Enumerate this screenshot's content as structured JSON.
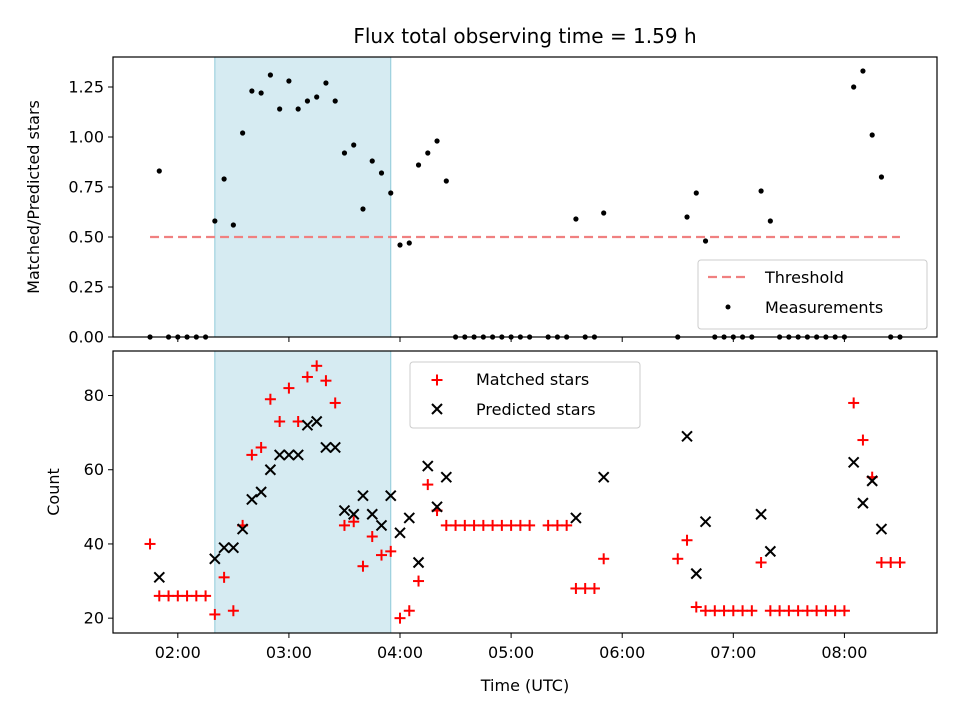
{
  "chart_data": [
    {
      "type": "scatter",
      "title": "Flux total observing time = 1.59 h",
      "xlabel": "",
      "ylabel": "Matched/Predicted stars",
      "xlim": [
        "01:25",
        "08:50"
      ],
      "ylim": [
        0,
        1.4
      ],
      "yticks": [
        "0.00",
        "0.25",
        "0.50",
        "0.75",
        "1.00",
        "1.25"
      ],
      "shaded_span": [
        "02:20",
        "03:55"
      ],
      "shade_color": "#add8e6",
      "grid": false,
      "legend_position": "lower-right",
      "threshold": {
        "name": "Threshold",
        "y": 0.5,
        "x_start": "01:45",
        "x_end": "08:30",
        "color": "#f08080"
      },
      "series": [
        {
          "name": "Measurements",
          "color": "#000000",
          "points": [
            [
              "01:45",
              0
            ],
            [
              "01:50",
              0.83
            ],
            [
              "01:55",
              0
            ],
            [
              "02:00",
              0
            ],
            [
              "02:05",
              0
            ],
            [
              "02:10",
              0
            ],
            [
              "02:15",
              0
            ],
            [
              "02:20",
              0.58
            ],
            [
              "02:25",
              0.79
            ],
            [
              "02:30",
              0.56
            ],
            [
              "02:35",
              1.02
            ],
            [
              "02:40",
              1.23
            ],
            [
              "02:45",
              1.22
            ],
            [
              "02:50",
              1.31
            ],
            [
              "02:55",
              1.14
            ],
            [
              "03:00",
              1.28
            ],
            [
              "03:05",
              1.14
            ],
            [
              "03:10",
              1.18
            ],
            [
              "03:15",
              1.2
            ],
            [
              "03:20",
              1.27
            ],
            [
              "03:25",
              1.18
            ],
            [
              "03:30",
              0.92
            ],
            [
              "03:35",
              0.96
            ],
            [
              "03:40",
              0.64
            ],
            [
              "03:45",
              0.88
            ],
            [
              "03:50",
              0.82
            ],
            [
              "03:55",
              0.72
            ],
            [
              "04:00",
              0.46
            ],
            [
              "04:05",
              0.47
            ],
            [
              "04:10",
              0.86
            ],
            [
              "04:15",
              0.92
            ],
            [
              "04:20",
              0.98
            ],
            [
              "04:25",
              0.78
            ],
            [
              "04:30",
              0
            ],
            [
              "04:35",
              0
            ],
            [
              "04:40",
              0
            ],
            [
              "04:45",
              0
            ],
            [
              "04:50",
              0
            ],
            [
              "04:55",
              0
            ],
            [
              "05:00",
              0
            ],
            [
              "05:05",
              0
            ],
            [
              "05:10",
              0
            ],
            [
              "05:20",
              0
            ],
            [
              "05:25",
              0
            ],
            [
              "05:30",
              0
            ],
            [
              "05:35",
              0.59
            ],
            [
              "05:40",
              0
            ],
            [
              "05:45",
              0
            ],
            [
              "05:50",
              0.62
            ],
            [
              "06:30",
              0
            ],
            [
              "06:35",
              0.6
            ],
            [
              "06:40",
              0.72
            ],
            [
              "06:45",
              0.48
            ],
            [
              "06:50",
              0
            ],
            [
              "06:55",
              0
            ],
            [
              "07:00",
              0
            ],
            [
              "07:05",
              0
            ],
            [
              "07:10",
              0
            ],
            [
              "07:15",
              0.73
            ],
            [
              "07:20",
              0.58
            ],
            [
              "07:25",
              0
            ],
            [
              "07:30",
              0
            ],
            [
              "07:35",
              0
            ],
            [
              "07:40",
              0
            ],
            [
              "07:45",
              0
            ],
            [
              "07:50",
              0
            ],
            [
              "07:55",
              0
            ],
            [
              "08:00",
              0
            ],
            [
              "08:05",
              1.25
            ],
            [
              "08:10",
              1.33
            ],
            [
              "08:15",
              1.01
            ],
            [
              "08:20",
              0.8
            ],
            [
              "08:25",
              0
            ],
            [
              "08:30",
              0
            ]
          ]
        }
      ]
    },
    {
      "type": "scatter",
      "title": "",
      "xlabel": "Time (UTC)",
      "ylabel": "Count",
      "xlim": [
        "01:25",
        "08:50"
      ],
      "ylim": [
        16,
        92
      ],
      "xticks": [
        "02:00",
        "03:00",
        "04:00",
        "05:00",
        "06:00",
        "07:00",
        "08:00"
      ],
      "yticks": [
        "20",
        "40",
        "60",
        "80"
      ],
      "shaded_span": [
        "02:20",
        "03:55"
      ],
      "shade_color": "#add8e6",
      "grid": false,
      "legend_position": "top-center",
      "series": [
        {
          "name": "Matched stars",
          "marker": "+",
          "color": "#ff0000",
          "points": [
            [
              "01:45",
              40
            ],
            [
              "01:50",
              26
            ],
            [
              "01:55",
              26
            ],
            [
              "02:00",
              26
            ],
            [
              "02:05",
              26
            ],
            [
              "02:10",
              26
            ],
            [
              "02:15",
              26
            ],
            [
              "02:20",
              21
            ],
            [
              "02:25",
              31
            ],
            [
              "02:30",
              22
            ],
            [
              "02:35",
              45
            ],
            [
              "02:40",
              64
            ],
            [
              "02:45",
              66
            ],
            [
              "02:50",
              79
            ],
            [
              "02:55",
              73
            ],
            [
              "03:00",
              82
            ],
            [
              "03:05",
              73
            ],
            [
              "03:10",
              85
            ],
            [
              "03:15",
              88
            ],
            [
              "03:20",
              84
            ],
            [
              "03:25",
              78
            ],
            [
              "03:30",
              45
            ],
            [
              "03:35",
              46
            ],
            [
              "03:40",
              34
            ],
            [
              "03:45",
              42
            ],
            [
              "03:50",
              37
            ],
            [
              "03:55",
              38
            ],
            [
              "04:00",
              20
            ],
            [
              "04:05",
              22
            ],
            [
              "04:10",
              30
            ],
            [
              "04:15",
              56
            ],
            [
              "04:20",
              49
            ],
            [
              "04:25",
              45
            ],
            [
              "04:30",
              45
            ],
            [
              "04:35",
              45
            ],
            [
              "04:40",
              45
            ],
            [
              "04:45",
              45
            ],
            [
              "04:50",
              45
            ],
            [
              "04:55",
              45
            ],
            [
              "05:00",
              45
            ],
            [
              "05:05",
              45
            ],
            [
              "05:10",
              45
            ],
            [
              "05:20",
              45
            ],
            [
              "05:25",
              45
            ],
            [
              "05:30",
              45
            ],
            [
              "05:35",
              28
            ],
            [
              "05:40",
              28
            ],
            [
              "05:45",
              28
            ],
            [
              "05:50",
              36
            ],
            [
              "06:30",
              36
            ],
            [
              "06:35",
              41
            ],
            [
              "06:40",
              23
            ],
            [
              "06:45",
              22
            ],
            [
              "06:50",
              22
            ],
            [
              "06:55",
              22
            ],
            [
              "07:00",
              22
            ],
            [
              "07:05",
              22
            ],
            [
              "07:10",
              22
            ],
            [
              "07:15",
              35
            ],
            [
              "07:20",
              22
            ],
            [
              "07:25",
              22
            ],
            [
              "07:30",
              22
            ],
            [
              "07:35",
              22
            ],
            [
              "07:40",
              22
            ],
            [
              "07:45",
              22
            ],
            [
              "07:50",
              22
            ],
            [
              "07:55",
              22
            ],
            [
              "08:00",
              22
            ],
            [
              "08:05",
              78
            ],
            [
              "08:10",
              68
            ],
            [
              "08:15",
              58
            ],
            [
              "08:20",
              35
            ],
            [
              "08:25",
              35
            ],
            [
              "08:30",
              35
            ]
          ]
        },
        {
          "name": "Predicted stars",
          "marker": "x",
          "color": "#000000",
          "points": [
            [
              "01:50",
              31
            ],
            [
              "02:20",
              36
            ],
            [
              "02:25",
              39
            ],
            [
              "02:30",
              39
            ],
            [
              "02:35",
              44
            ],
            [
              "02:40",
              52
            ],
            [
              "02:45",
              54
            ],
            [
              "02:50",
              60
            ],
            [
              "02:55",
              64
            ],
            [
              "03:00",
              64
            ],
            [
              "03:05",
              64
            ],
            [
              "03:10",
              72
            ],
            [
              "03:15",
              73
            ],
            [
              "03:20",
              66
            ],
            [
              "03:25",
              66
            ],
            [
              "03:30",
              49
            ],
            [
              "03:35",
              48
            ],
            [
              "03:40",
              53
            ],
            [
              "03:45",
              48
            ],
            [
              "03:50",
              45
            ],
            [
              "03:55",
              53
            ],
            [
              "04:00",
              43
            ],
            [
              "04:05",
              47
            ],
            [
              "04:10",
              35
            ],
            [
              "04:15",
              61
            ],
            [
              "04:20",
              50
            ],
            [
              "04:25",
              58
            ],
            [
              "05:35",
              47
            ],
            [
              "05:50",
              58
            ],
            [
              "06:35",
              69
            ],
            [
              "06:40",
              32
            ],
            [
              "06:45",
              46
            ],
            [
              "07:15",
              48
            ],
            [
              "07:20",
              38
            ],
            [
              "08:05",
              62
            ],
            [
              "08:10",
              51
            ],
            [
              "08:15",
              57
            ],
            [
              "08:20",
              44
            ]
          ]
        }
      ]
    }
  ]
}
